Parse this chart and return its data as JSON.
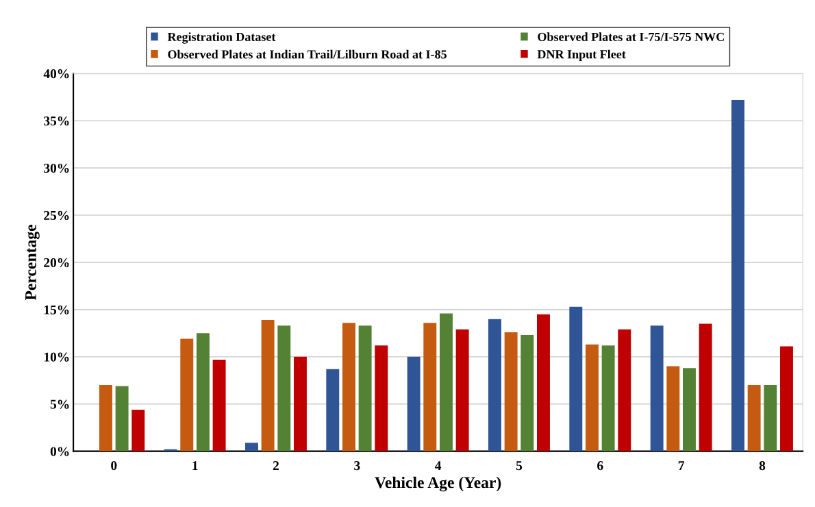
{
  "chart_data": {
    "type": "bar",
    "xlabel": "Vehicle Age (Year)",
    "ylabel": "Percentage",
    "categories": [
      "0",
      "1",
      "2",
      "3",
      "4",
      "5",
      "6",
      "7",
      "8"
    ],
    "series": [
      {
        "name": "Registration Dataset",
        "color": "#2f5597",
        "values": [
          0,
          0.2,
          0.9,
          8.7,
          10.0,
          14.0,
          15.3,
          13.3,
          37.2
        ]
      },
      {
        "name": "Observed Plates at Indian Trail/Lilburn Road at I-85",
        "color": "#c55a11",
        "values": [
          7.0,
          11.9,
          13.9,
          13.6,
          13.6,
          12.6,
          11.3,
          9.0,
          7.0
        ]
      },
      {
        "name": "Observed Plates at I-75/I-575 NWC",
        "color": "#548235",
        "values": [
          6.9,
          12.5,
          13.3,
          13.3,
          14.6,
          12.3,
          11.2,
          8.8,
          7.0
        ]
      },
      {
        "name": "DNR Input Fleet",
        "color": "#c00000",
        "values": [
          4.4,
          9.7,
          10.0,
          11.2,
          12.9,
          14.5,
          12.9,
          13.5,
          11.1
        ]
      }
    ],
    "ylim": [
      0,
      40
    ],
    "yticks": [
      {
        "value": 0,
        "label": "0%"
      },
      {
        "value": 5,
        "label": "5%"
      },
      {
        "value": 10,
        "label": "10%"
      },
      {
        "value": 15,
        "label": "15%"
      },
      {
        "value": 20,
        "label": "20%"
      },
      {
        "value": 25,
        "label": "25%"
      },
      {
        "value": 30,
        "label": "30%"
      },
      {
        "value": 35,
        "label": "35%"
      },
      {
        "value": 40,
        "label": "40%"
      }
    ],
    "grid": "y",
    "legend": "top"
  }
}
